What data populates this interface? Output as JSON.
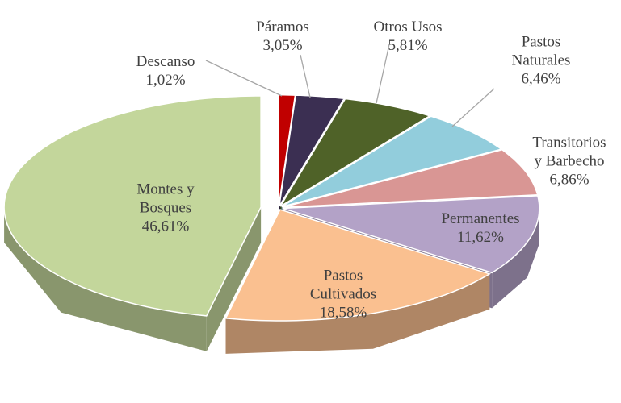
{
  "chart_data": {
    "type": "pie3d",
    "categories": [
      "Descanso",
      "Páramos",
      "Otros Usos",
      "Pastos\nNaturales",
      "Transitorios\ny Barbecho",
      "Permanentes",
      "Pastos\nCultivados",
      "Montes y\nBosques"
    ],
    "values": [
      1.02,
      3.05,
      5.81,
      6.46,
      6.86,
      11.62,
      18.58,
      46.61
    ],
    "value_labels": [
      "1,02%",
      "3,05%",
      "5,81%",
      "6,46%",
      "6,86%",
      "11,62%",
      "18,58%",
      "46,61%"
    ],
    "colors": [
      "#c00000",
      "#3b2f52",
      "#4f6228",
      "#92cddc",
      "#d99694",
      "#b3a2c7",
      "#fac090",
      "#c3d69b"
    ]
  }
}
